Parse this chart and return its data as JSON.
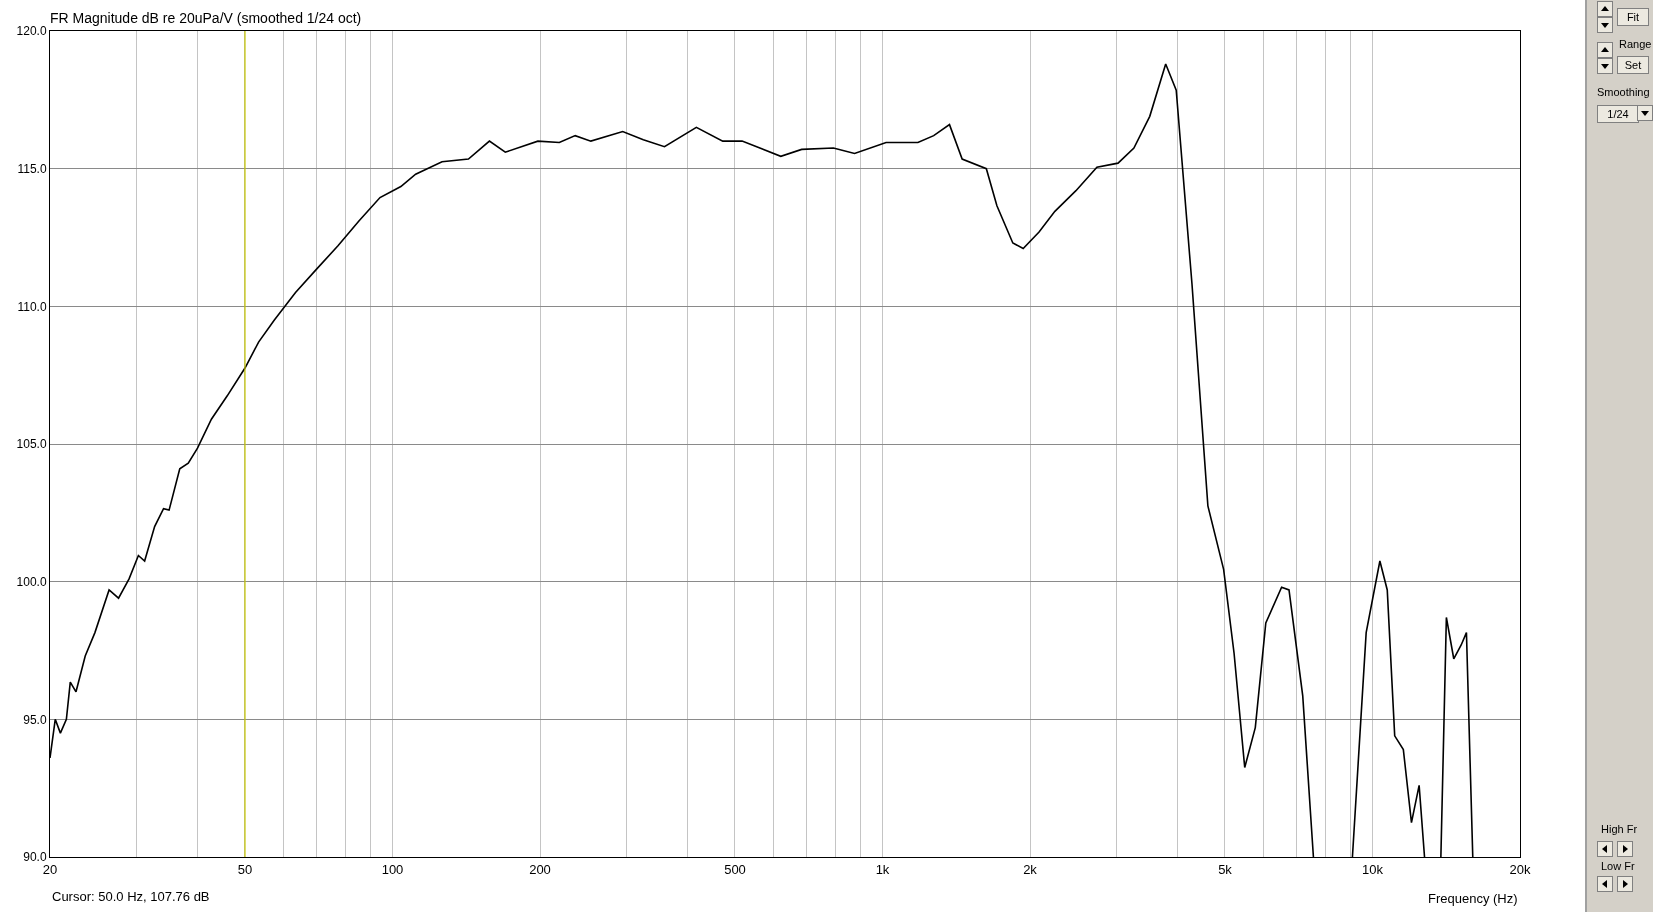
{
  "chart_data": {
    "type": "line",
    "title": "FR Magnitude dB re 20uPa/V (smoothed 1/24 oct)",
    "xlabel": "Frequency (Hz)",
    "log": "x",
    "grid": true,
    "xlim": [
      20,
      20000
    ],
    "ylim": [
      90,
      120
    ],
    "xticks": [
      20,
      {
        "value": 30,
        "label": null
      },
      {
        "value": 40,
        "label": null
      },
      50,
      {
        "value": 60,
        "label": null
      },
      {
        "value": 70,
        "label": null
      },
      {
        "value": 80,
        "label": null
      },
      {
        "value": 90,
        "label": null
      },
      100,
      200,
      {
        "value": 300,
        "label": null
      },
      {
        "value": 400,
        "label": null
      },
      500,
      {
        "value": 600,
        "label": null
      },
      {
        "value": 700,
        "label": null
      },
      {
        "value": 800,
        "label": null
      },
      {
        "value": 900,
        "label": null
      },
      {
        "value": 1000,
        "label": "1k"
      },
      {
        "value": 2000,
        "label": "2k"
      },
      {
        "value": 3000,
        "label": null
      },
      {
        "value": 4000,
        "label": null
      },
      {
        "value": 5000,
        "label": "5k"
      },
      {
        "value": 6000,
        "label": null
      },
      {
        "value": 7000,
        "label": null
      },
      {
        "value": 8000,
        "label": null
      },
      {
        "value": 9000,
        "label": null
      },
      {
        "value": 10000,
        "label": "10k"
      },
      {
        "value": 20000,
        "label": "20k"
      }
    ],
    "yticks": [
      {
        "value": 90,
        "label": "90.0"
      },
      {
        "value": 95,
        "label": "95.0"
      },
      {
        "value": 100,
        "label": "100.0"
      },
      {
        "value": 105,
        "label": "105.0"
      },
      {
        "value": 110,
        "label": "110.0"
      },
      {
        "value": 115,
        "label": "115.0"
      },
      {
        "value": 120,
        "label": "120.0"
      }
    ],
    "ref_lines": [
      {
        "axis": "x",
        "value": 50,
        "color": "#c8c800"
      }
    ],
    "annotations": [
      "Cursor: 50.0 Hz, 107.76 dB",
      "Fit",
      "Range",
      "Set",
      "Smoothing",
      "1/24",
      "High Fr",
      "Low Fr"
    ],
    "series": [
      {
        "color": "#000000",
        "x": [
          20,
          20.5,
          21,
          21.6,
          22,
          22.6,
          23.6,
          24.7,
          26.4,
          27.6,
          29,
          30.3,
          31.2,
          32.7,
          34.1,
          35,
          36.8,
          38.3,
          40,
          42.7,
          46,
          50,
          53.3,
          57.4,
          63.4,
          70,
          77.4,
          85.4,
          94.3,
          104,
          111.5,
          126.2,
          142.9,
          157.7,
          169.9,
          198,
          219,
          236,
          254,
          295,
          325,
          359,
          417,
          472,
          517,
          620,
          684,
          794,
          877,
          1017,
          1181,
          1272,
          1370,
          1454,
          1629,
          1712,
          1845,
          1937,
          2087,
          2248,
          2482,
          2739,
          3025,
          3259,
          3511,
          3784,
          3976,
          4282,
          4614,
          4968,
          5218,
          5486,
          5765,
          6057,
          6524,
          6755,
          7205,
          7576,
          8300,
          9100,
          9707,
          10353,
          10718,
          11100,
          11560,
          12010,
          12450,
          12770,
          13300,
          13790,
          14150,
          14650,
          15170,
          15550,
          16020
        ],
        "values": [
          93.6,
          95.0,
          94.5,
          95.0,
          96.35,
          96.0,
          97.3,
          98.15,
          99.7,
          99.4,
          100.1,
          100.95,
          100.75,
          102.0,
          102.65,
          102.6,
          104.1,
          104.3,
          104.85,
          105.9,
          106.75,
          107.76,
          108.7,
          109.5,
          110.5,
          111.35,
          112.2,
          113.1,
          113.95,
          114.35,
          114.8,
          115.25,
          115.35,
          116.0,
          115.6,
          116.0,
          115.95,
          116.2,
          116.0,
          116.35,
          116.05,
          115.8,
          116.5,
          116.0,
          116.0,
          115.45,
          115.7,
          115.75,
          115.55,
          115.95,
          115.95,
          116.2,
          116.6,
          115.35,
          115.0,
          113.65,
          112.3,
          112.1,
          112.7,
          113.45,
          114.2,
          115.05,
          115.2,
          115.75,
          116.9,
          118.8,
          117.85,
          110.8,
          102.75,
          100.45,
          97.4,
          93.25,
          94.7,
          98.5,
          99.8,
          99.7,
          95.85,
          90.0,
          null,
          90.0,
          98.15,
          100.75,
          99.7,
          94.4,
          93.9,
          91.25,
          92.6,
          90.0,
          null,
          90.0,
          98.7,
          97.2,
          97.7,
          98.15,
          90.0
        ]
      }
    ]
  }
}
